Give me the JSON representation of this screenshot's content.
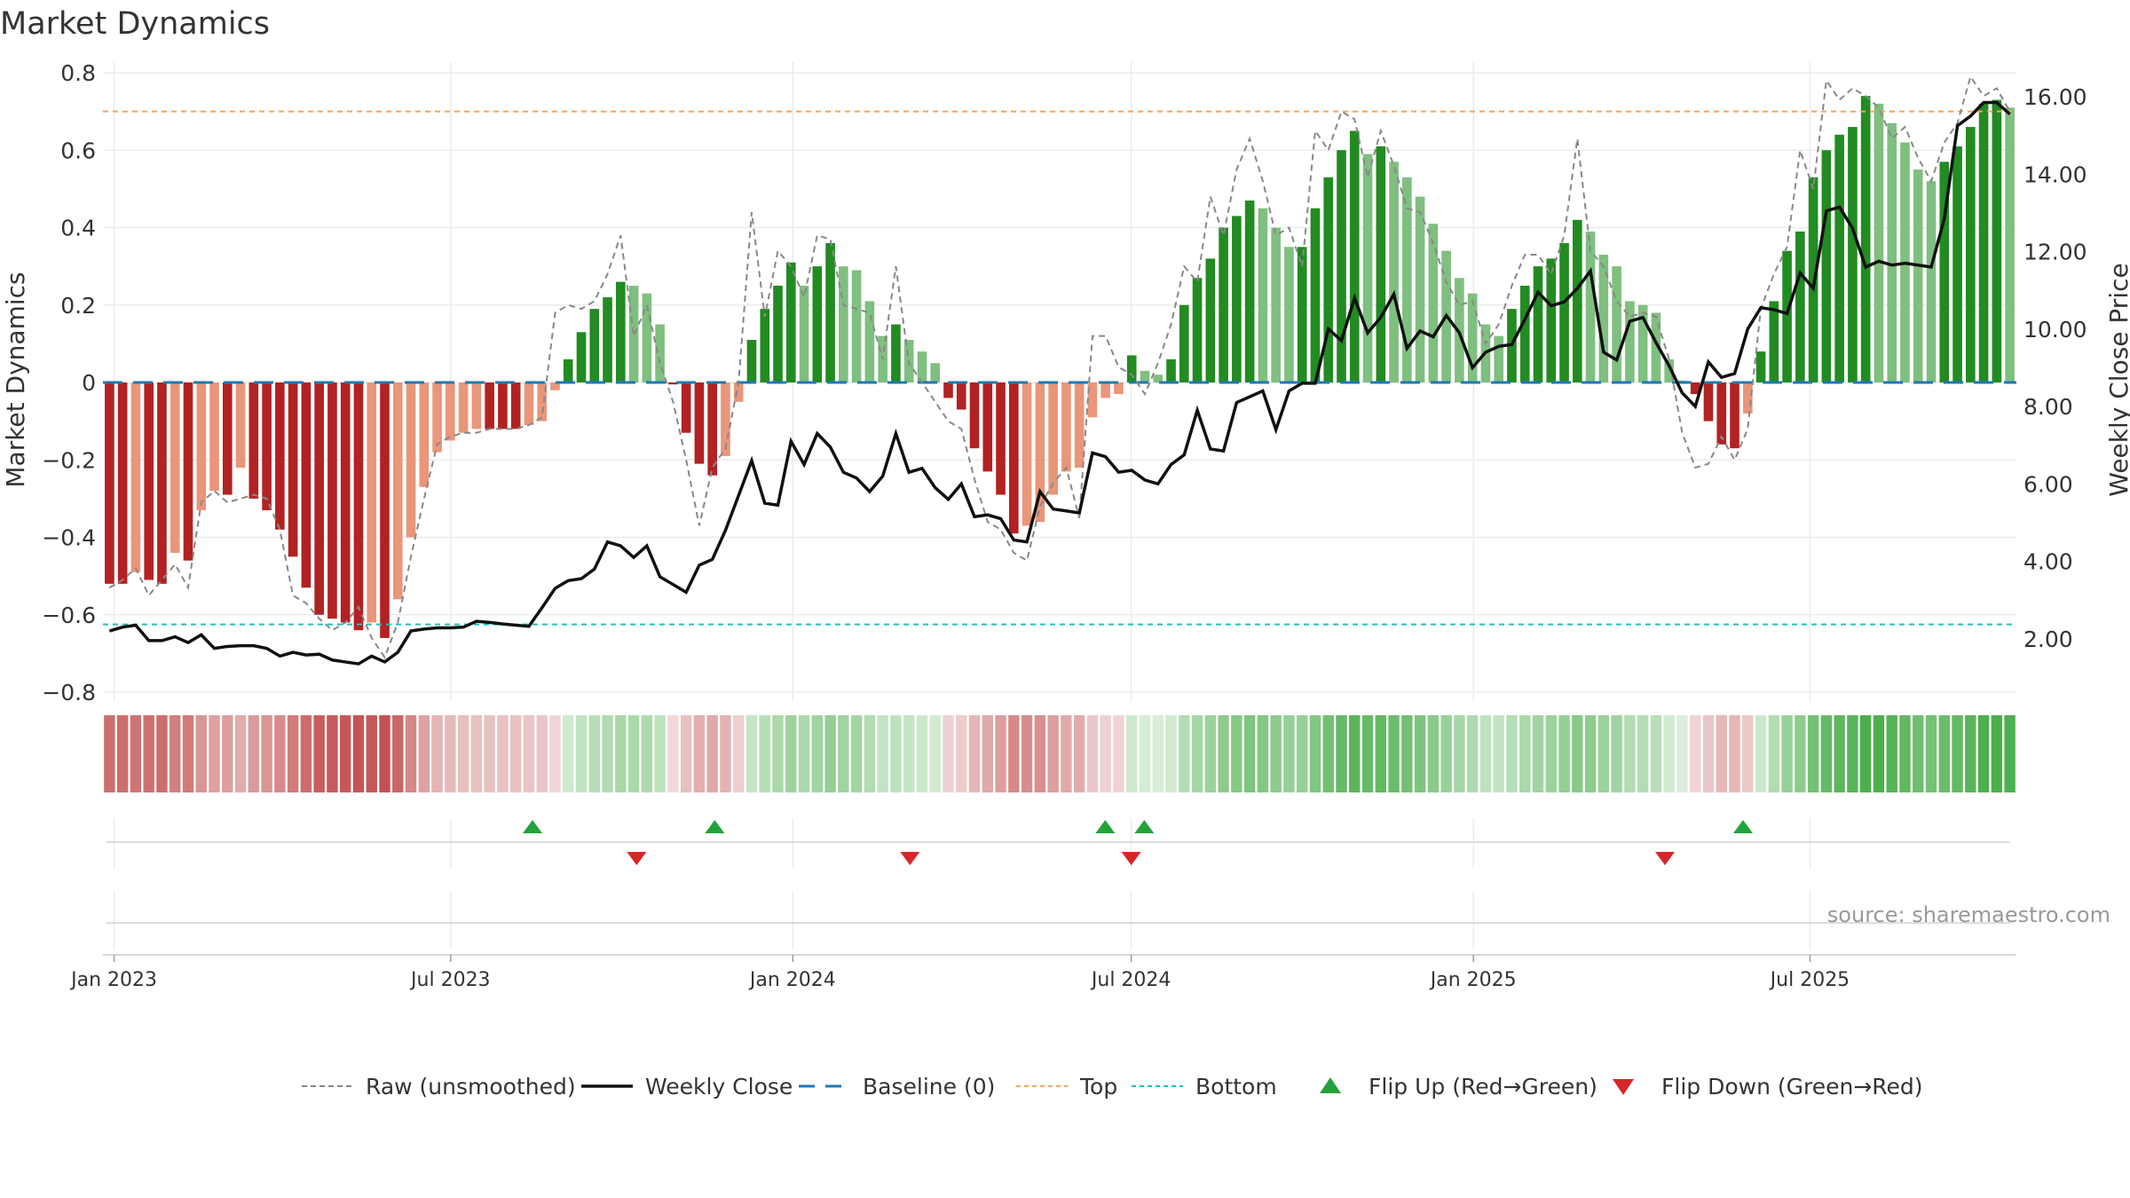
{
  "chart_data": {
    "type": "bar",
    "title": "Market Dynamics",
    "ylabel": "Market Dynamics",
    "y2label": "Weekly Close Price",
    "ylim": [
      -0.85,
      0.82
    ],
    "y2lim": [
      0.0,
      16.8
    ],
    "yticks": [
      0.8,
      0.6,
      0.4,
      0.2,
      0,
      -0.2,
      -0.4,
      -0.6,
      -0.8
    ],
    "yticklabels": [
      "0.8",
      "0.6",
      "0.4",
      "0.2",
      "0",
      "−0.2",
      "−0.4",
      "−0.6",
      "−0.8"
    ],
    "y2ticks": [
      16,
      14,
      12,
      10,
      8,
      6,
      4,
      2
    ],
    "y2ticklabels": [
      "16.00",
      "14.00",
      "12.00",
      "10.00",
      "8.00",
      "6.00",
      "4.00",
      "2.00"
    ],
    "x_start": "2022-12-26",
    "x_end": "2025-10-20",
    "xticks": [
      "2023-01-01",
      "2023-07-01",
      "2024-01-01",
      "2024-07-01",
      "2025-01-01",
      "2025-07-01"
    ],
    "xticklabels": [
      "Jan 2023",
      "Jul 2023",
      "Jan 2024",
      "Jul 2024",
      "Jan 2025",
      "Jul 2025"
    ],
    "top_level": 0.7,
    "bottom_level": -0.625,
    "baseline": 0,
    "grid": true,
    "legend_placement": "bottom-center",
    "source_text": "source: sharemaestro.com",
    "colors": {
      "strong_red": "#b22222",
      "weak_red": "#e9967a",
      "strong_green": "#228b22",
      "weak_green": "#7fbf7f",
      "raw": "#888888",
      "close": "#111111",
      "baseline": "#1f77b4",
      "top": "#f4a460",
      "bottom": "#20c0c0",
      "flip_up": "#22a33a",
      "flip_down": "#d62728"
    },
    "bars": [
      -0.52,
      -0.52,
      -0.49,
      -0.51,
      -0.52,
      -0.44,
      -0.46,
      -0.33,
      -0.28,
      -0.29,
      -0.22,
      -0.3,
      -0.33,
      -0.38,
      -0.45,
      -0.53,
      -0.6,
      -0.61,
      -0.62,
      -0.64,
      -0.62,
      -0.66,
      -0.56,
      -0.4,
      -0.27,
      -0.18,
      -0.15,
      -0.13,
      -0.12,
      -0.12,
      -0.12,
      -0.12,
      -0.11,
      -0.1,
      -0.02,
      0.06,
      0.13,
      0.19,
      0.22,
      0.26,
      0.25,
      0.23,
      0.15,
      -0.005,
      -0.13,
      -0.21,
      -0.24,
      -0.19,
      -0.05,
      0.11,
      0.19,
      0.25,
      0.31,
      0.25,
      0.3,
      0.36,
      0.3,
      0.29,
      0.21,
      0.12,
      0.15,
      0.11,
      0.08,
      0.05,
      -0.04,
      -0.07,
      -0.17,
      -0.23,
      -0.29,
      -0.39,
      -0.37,
      -0.36,
      -0.29,
      -0.23,
      -0.22,
      -0.09,
      -0.04,
      -0.03,
      0.07,
      0.03,
      0.02,
      0.06,
      0.2,
      0.27,
      0.32,
      0.4,
      0.43,
      0.47,
      0.45,
      0.4,
      0.35,
      0.35,
      0.45,
      0.53,
      0.6,
      0.65,
      0.59,
      0.61,
      0.57,
      0.53,
      0.48,
      0.41,
      0.34,
      0.27,
      0.23,
      0.15,
      0.12,
      0.19,
      0.25,
      0.3,
      0.32,
      0.36,
      0.42,
      0.39,
      0.33,
      0.3,
      0.21,
      0.2,
      0.18,
      0.06,
      0.005,
      -0.03,
      -0.1,
      -0.16,
      -0.17,
      -0.08,
      0.08,
      0.21,
      0.34,
      0.39,
      0.53,
      0.6,
      0.64,
      0.66,
      0.74,
      0.72,
      0.67,
      0.62,
      0.55,
      0.52,
      0.57,
      0.61,
      0.66,
      0.72,
      0.73,
      0.71
    ],
    "raw": [
      -0.53,
      -0.51,
      -0.48,
      -0.55,
      -0.51,
      -0.47,
      -0.53,
      -0.31,
      -0.28,
      -0.31,
      -0.3,
      -0.29,
      -0.3,
      -0.38,
      -0.55,
      -0.57,
      -0.61,
      -0.64,
      -0.62,
      -0.58,
      -0.66,
      -0.71,
      -0.62,
      -0.45,
      -0.3,
      -0.16,
      -0.14,
      -0.13,
      -0.13,
      -0.12,
      -0.12,
      -0.12,
      -0.11,
      -0.09,
      0.18,
      0.2,
      0.19,
      0.21,
      0.28,
      0.38,
      0.12,
      0.2,
      0.05,
      -0.05,
      -0.2,
      -0.37,
      -0.22,
      -0.17,
      0.0,
      0.44,
      0.17,
      0.34,
      0.3,
      0.22,
      0.38,
      0.37,
      0.2,
      0.19,
      0.18,
      0.06,
      0.3,
      0.05,
      0.0,
      -0.05,
      -0.1,
      -0.12,
      -0.25,
      -0.36,
      -0.38,
      -0.44,
      -0.46,
      -0.32,
      -0.26,
      -0.22,
      -0.35,
      0.12,
      0.12,
      0.04,
      0.02,
      -0.03,
      0.05,
      0.15,
      0.3,
      0.26,
      0.48,
      0.38,
      0.55,
      0.63,
      0.52,
      0.38,
      0.4,
      0.3,
      0.65,
      0.6,
      0.7,
      0.68,
      0.53,
      0.65,
      0.56,
      0.45,
      0.44,
      0.36,
      0.26,
      0.2,
      0.21,
      0.1,
      0.15,
      0.25,
      0.33,
      0.33,
      0.28,
      0.38,
      0.63,
      0.34,
      0.3,
      0.21,
      0.17,
      0.18,
      0.17,
      0.06,
      -0.13,
      -0.22,
      -0.21,
      -0.14,
      -0.2,
      -0.12,
      0.19,
      0.28,
      0.35,
      0.6,
      0.5,
      0.78,
      0.73,
      0.76,
      0.74,
      0.71,
      0.63,
      0.66,
      0.58,
      0.52,
      0.62,
      0.67,
      0.79,
      0.74,
      0.76,
      0.7
    ],
    "close": [
      2.2,
      2.3,
      2.35,
      1.95,
      1.95,
      2.05,
      1.9,
      2.1,
      1.75,
      1.8,
      1.82,
      1.82,
      1.75,
      1.55,
      1.65,
      1.58,
      1.6,
      1.45,
      1.4,
      1.35,
      1.55,
      1.4,
      1.65,
      2.2,
      2.25,
      2.28,
      2.28,
      2.3,
      2.45,
      2.42,
      2.38,
      2.35,
      2.32,
      2.8,
      3.3,
      3.5,
      3.55,
      3.8,
      4.5,
      4.4,
      4.1,
      4.4,
      3.6,
      3.4,
      3.2,
      3.9,
      4.05,
      4.8,
      5.7,
      6.6,
      5.5,
      5.45,
      7.1,
      6.5,
      7.3,
      6.95,
      6.3,
      6.15,
      5.8,
      6.2,
      7.3,
      6.3,
      6.4,
      5.9,
      5.6,
      6.0,
      5.15,
      5.2,
      5.1,
      4.55,
      4.5,
      5.8,
      5.35,
      5.3,
      5.25,
      6.8,
      6.7,
      6.3,
      6.35,
      6.1,
      6.0,
      6.5,
      6.75,
      7.9,
      6.9,
      6.85,
      8.1,
      8.25,
      8.4,
      7.4,
      8.4,
      8.6,
      8.6,
      10.0,
      9.7,
      10.8,
      9.9,
      10.3,
      10.9,
      9.5,
      9.95,
      9.8,
      10.35,
      9.9,
      9.0,
      9.4,
      9.55,
      9.6,
      10.25,
      10.95,
      10.6,
      10.7,
      11.05,
      11.5,
      9.4,
      9.2,
      10.2,
      10.3,
      9.65,
      9.05,
      8.35,
      8.0,
      9.15,
      8.75,
      8.85,
      10.0,
      10.55,
      10.5,
      10.4,
      11.45,
      11.05,
      13.05,
      13.15,
      12.6,
      11.6,
      11.75,
      11.65,
      11.7,
      11.65,
      11.6,
      12.85,
      15.25,
      15.5,
      15.85,
      15.85,
      15.55
    ],
    "flips_up": [
      "2023-08-14",
      "2023-11-20",
      "2024-06-17",
      "2024-07-08",
      "2025-05-26"
    ],
    "flips_down": [
      "2023-10-09",
      "2024-03-04",
      "2024-07-01",
      "2025-04-14"
    ],
    "legend": [
      {
        "label": "Raw (unsmoothed)",
        "kind": "dash-gray"
      },
      {
        "label": "Weekly Close",
        "kind": "solid-black"
      },
      {
        "label": "Baseline (0)",
        "kind": "dash-blue"
      },
      {
        "label": "Top",
        "kind": "dot-orange"
      },
      {
        "label": "Bottom",
        "kind": "dot-cyan"
      },
      {
        "label": "Flip Up (Red→Green)",
        "kind": "tri-up"
      },
      {
        "label": "Flip Down (Green→Red)",
        "kind": "tri-down"
      }
    ]
  }
}
